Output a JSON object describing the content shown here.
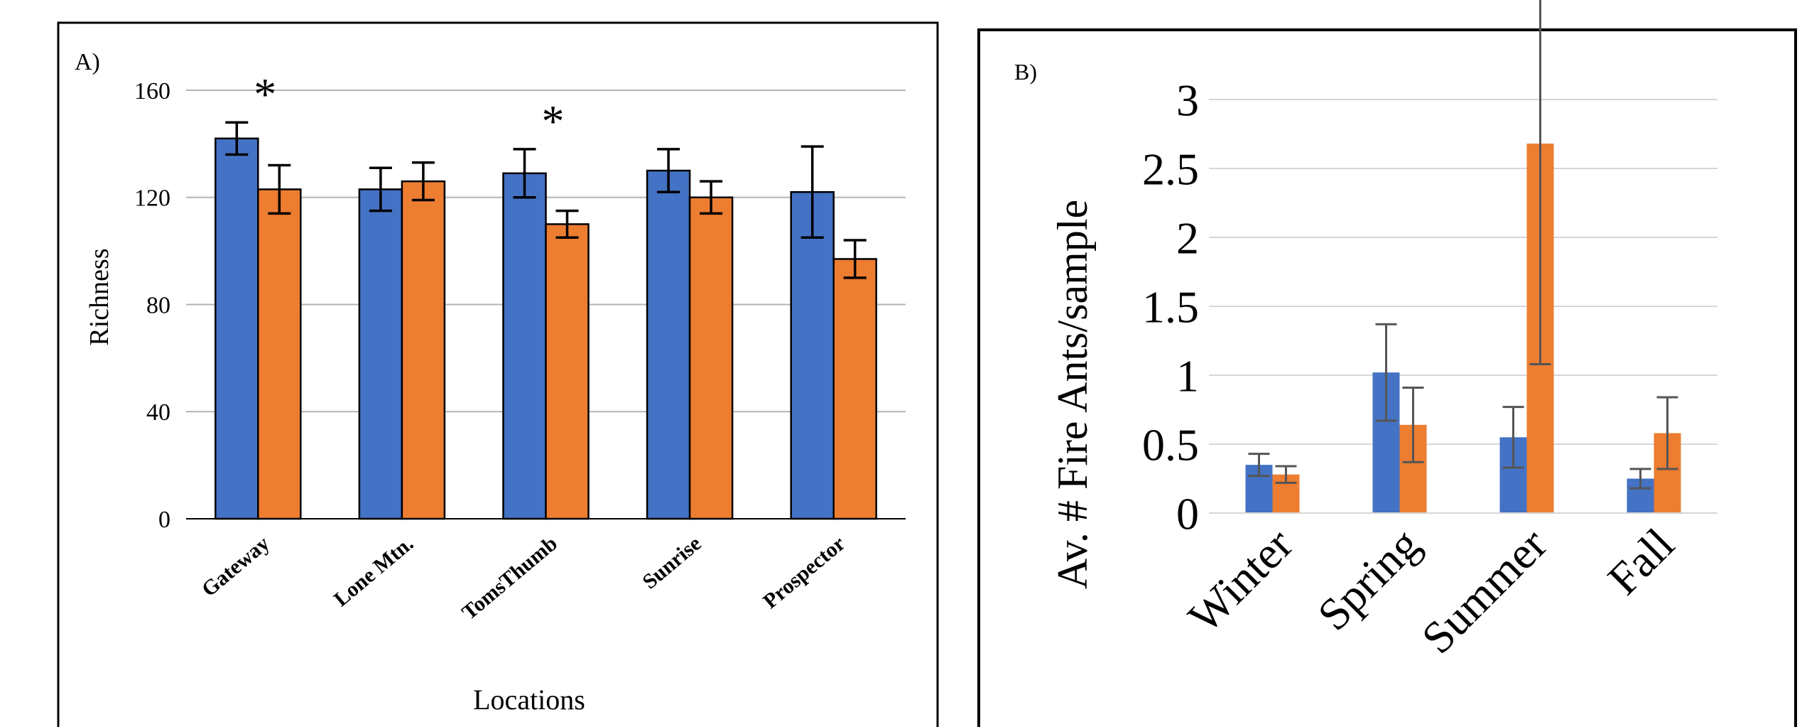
{
  "chart_data": [
    {
      "panel_label": "A)",
      "type": "bar",
      "ylabel": "Richness",
      "xlabel": "Locations",
      "ylim": [
        0,
        160
      ],
      "yticks": [
        0,
        40,
        80,
        120,
        160
      ],
      "grid": true,
      "categories": [
        "Gateway",
        "Lone Mtn.",
        "TomsThumb",
        "Sunrise",
        "Prospector"
      ],
      "series": [
        {
          "color": "#4472C4",
          "values": [
            142,
            123,
            129,
            130,
            122
          ],
          "errors": [
            6,
            8,
            9,
            8,
            17
          ]
        },
        {
          "color": "#ED7D31",
          "values": [
            123,
            126,
            110,
            120,
            97
          ],
          "errors": [
            9,
            7,
            5,
            6,
            7
          ]
        }
      ],
      "annotations": [
        {
          "text": "*",
          "category": "Gateway"
        },
        {
          "text": "*",
          "category": "TomsThumb"
        }
      ]
    },
    {
      "panel_label": "B)",
      "type": "bar",
      "ylabel": "Av. # Fire Ants/sample",
      "ylim": [
        0,
        3
      ],
      "yticks": [
        "0",
        "0.5",
        "1",
        "1.5",
        "2",
        "2.5",
        "3"
      ],
      "grid": true,
      "categories": [
        "Winter",
        "Spring",
        "Summer",
        "Fall"
      ],
      "series": [
        {
          "color": "#4472C4",
          "values": [
            0.35,
            1.02,
            0.55,
            0.25
          ],
          "errors": [
            0.08,
            0.35,
            0.22,
            0.07
          ]
        },
        {
          "color": "#ED7D31",
          "values": [
            0.28,
            0.64,
            2.68,
            0.58
          ],
          "errors": [
            0.06,
            0.27,
            1.6,
            0.26
          ]
        }
      ]
    }
  ]
}
